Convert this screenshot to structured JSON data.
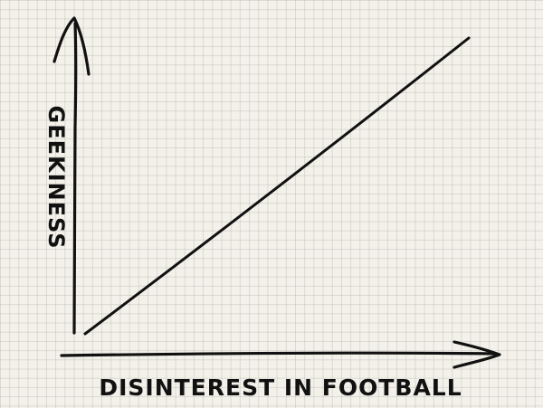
{
  "chart_data": {
    "type": "line",
    "title": "",
    "xlabel": "DISINTEREST IN FOOTBALL",
    "ylabel": "GEEKINESS",
    "x": [
      0,
      1
    ],
    "series": [
      {
        "values": [
          0,
          1
        ]
      }
    ],
    "xlim": [
      0,
      1
    ],
    "ylim": [
      0,
      1
    ],
    "grid": true,
    "colors": {
      "ink": "#111111",
      "paper": "#f3f1ea",
      "grid": "#b4b8ac"
    }
  }
}
